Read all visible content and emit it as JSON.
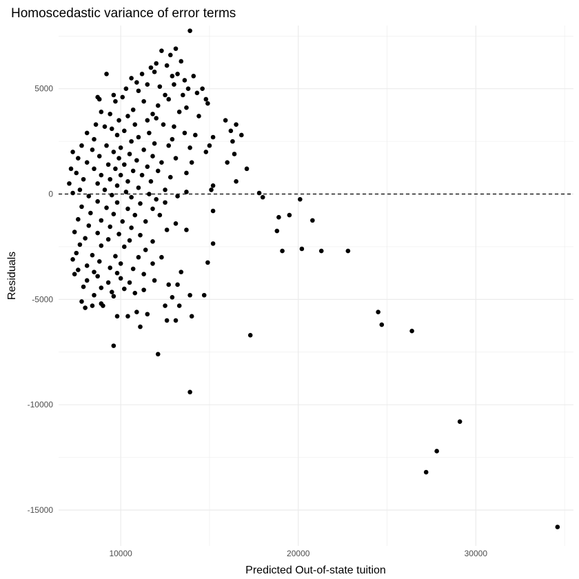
{
  "chart_data": {
    "type": "scatter",
    "title": "Homoscedastic variance of error terms",
    "xlabel": "Predicted Out-of-state tuition",
    "ylabel": "Residuals",
    "xlim": [
      6500,
      35500
    ],
    "ylim": [
      -16700,
      8000
    ],
    "x_ticks": [
      10000,
      20000,
      30000
    ],
    "x_tick_labels": [
      "10000",
      "20000",
      "30000"
    ],
    "x_minor_ticks": [
      15000,
      25000,
      35000
    ],
    "y_ticks": [
      5000,
      0,
      -5000,
      -10000,
      -15000
    ],
    "y_tick_labels": [
      "5000",
      "0",
      "-5000",
      "-10000",
      "-15000"
    ],
    "y_minor_ticks": [
      7500,
      2500,
      -2500,
      -7500,
      -12500
    ],
    "grid": true,
    "reference_line": {
      "y": 0,
      "style": "dashed"
    },
    "point_color": "#000000",
    "background": "#ffffff",
    "grid_color": "#ebebeb",
    "points": [
      [
        13900,
        7750
      ],
      [
        13100,
        6900
      ],
      [
        12300,
        6800
      ],
      [
        12800,
        6600
      ],
      [
        12000,
        6200
      ],
      [
        13400,
        6300
      ],
      [
        11700,
        6000
      ],
      [
        12600,
        6100
      ],
      [
        13200,
        5700
      ],
      [
        13600,
        5400
      ],
      [
        11200,
        5700
      ],
      [
        10600,
        5500
      ],
      [
        9200,
        5700
      ],
      [
        11900,
        5800
      ],
      [
        12900,
        5600
      ],
      [
        14100,
        5600
      ],
      [
        10900,
        5300
      ],
      [
        11500,
        5200
      ],
      [
        12200,
        5100
      ],
      [
        13000,
        5200
      ],
      [
        13800,
        5000
      ],
      [
        14600,
        5000
      ],
      [
        14300,
        4800
      ],
      [
        10300,
        5000
      ],
      [
        11000,
        4900
      ],
      [
        12500,
        4700
      ],
      [
        13500,
        4700
      ],
      [
        9600,
        4700
      ],
      [
        8700,
        4600
      ],
      [
        8800,
        4500
      ],
      [
        10100,
        4600
      ],
      [
        11300,
        4400
      ],
      [
        12700,
        4500
      ],
      [
        14800,
        4500
      ],
      [
        14900,
        4300
      ],
      [
        13700,
        4100
      ],
      [
        12100,
        4200
      ],
      [
        9700,
        4400
      ],
      [
        10700,
        4000
      ],
      [
        11800,
        3800
      ],
      [
        13300,
        3900
      ],
      [
        9400,
        3800
      ],
      [
        8900,
        3900
      ],
      [
        10400,
        3700
      ],
      [
        12000,
        3600
      ],
      [
        14400,
        3700
      ],
      [
        11500,
        3500
      ],
      [
        9900,
        3500
      ],
      [
        8600,
        3300
      ],
      [
        10800,
        3300
      ],
      [
        12400,
        3300
      ],
      [
        13000,
        3200
      ],
      [
        9100,
        3200
      ],
      [
        15900,
        3500
      ],
      [
        16500,
        3300
      ],
      [
        9500,
        3100
      ],
      [
        10200,
        3000
      ],
      [
        11600,
        2900
      ],
      [
        13600,
        2900
      ],
      [
        14200,
        2800
      ],
      [
        15200,
        2700
      ],
      [
        16200,
        3000
      ],
      [
        16800,
        2800
      ],
      [
        8100,
        2900
      ],
      [
        9800,
        2800
      ],
      [
        11000,
        2700
      ],
      [
        12900,
        2600
      ],
      [
        8500,
        2600
      ],
      [
        10600,
        2500
      ],
      [
        11900,
        2400
      ],
      [
        13900,
        2200
      ],
      [
        15000,
        2300
      ],
      [
        16300,
        2500
      ],
      [
        7800,
        2300
      ],
      [
        9200,
        2300
      ],
      [
        10000,
        2200
      ],
      [
        11300,
        2100
      ],
      [
        12700,
        2300
      ],
      [
        14800,
        2000
      ],
      [
        7300,
        2000
      ],
      [
        8400,
        2100
      ],
      [
        9600,
        2000
      ],
      [
        10500,
        1900
      ],
      [
        11800,
        1800
      ],
      [
        13100,
        1700
      ],
      [
        16400,
        1900
      ],
      [
        7600,
        1700
      ],
      [
        8800,
        1800
      ],
      [
        9900,
        1700
      ],
      [
        10900,
        1600
      ],
      [
        12300,
        1500
      ],
      [
        14000,
        1500
      ],
      [
        16000,
        1500
      ],
      [
        8100,
        1500
      ],
      [
        9300,
        1400
      ],
      [
        10200,
        1400
      ],
      [
        11500,
        1300
      ],
      [
        7200,
        1200
      ],
      [
        8500,
        1200
      ],
      [
        9700,
        1200
      ],
      [
        10700,
        1100
      ],
      [
        12100,
        1100
      ],
      [
        13700,
        1000
      ],
      [
        17100,
        1200
      ],
      [
        7500,
        1000
      ],
      [
        8900,
        900
      ],
      [
        10000,
        900
      ],
      [
        11200,
        900
      ],
      [
        12800,
        800
      ],
      [
        16500,
        600
      ],
      [
        7900,
        700
      ],
      [
        9400,
        700
      ],
      [
        10400,
        600
      ],
      [
        11700,
        600
      ],
      [
        15200,
        400
      ],
      [
        7100,
        500
      ],
      [
        8700,
        500
      ],
      [
        9800,
        400
      ],
      [
        11000,
        300
      ],
      [
        12500,
        200
      ],
      [
        15100,
        200
      ],
      [
        7700,
        200
      ],
      [
        9100,
        200
      ],
      [
        10300,
        100
      ],
      [
        11600,
        0
      ],
      [
        13700,
        100
      ],
      [
        17800,
        50
      ],
      [
        7300,
        50
      ],
      [
        8200,
        -100
      ],
      [
        9500,
        -50
      ],
      [
        10600,
        -150
      ],
      [
        12000,
        -250
      ],
      [
        13200,
        -100
      ],
      [
        18000,
        -150
      ],
      [
        20100,
        -250
      ],
      [
        8700,
        -350
      ],
      [
        9800,
        -400
      ],
      [
        11100,
        -450
      ],
      [
        12500,
        -400
      ],
      [
        7800,
        -600
      ],
      [
        9200,
        -650
      ],
      [
        10400,
        -700
      ],
      [
        11800,
        -700
      ],
      [
        15200,
        -800
      ],
      [
        19500,
        -1000
      ],
      [
        18900,
        -1100
      ],
      [
        8300,
        -900
      ],
      [
        9600,
        -950
      ],
      [
        10800,
        -1000
      ],
      [
        12200,
        -1000
      ],
      [
        20800,
        -1250
      ],
      [
        7600,
        -1200
      ],
      [
        8900,
        -1250
      ],
      [
        10100,
        -1300
      ],
      [
        11400,
        -1300
      ],
      [
        13100,
        -1400
      ],
      [
        8200,
        -1500
      ],
      [
        9400,
        -1550
      ],
      [
        10600,
        -1600
      ],
      [
        12600,
        -1700
      ],
      [
        13700,
        -1700
      ],
      [
        18800,
        -1750
      ],
      [
        7400,
        -1800
      ],
      [
        8700,
        -1850
      ],
      [
        9900,
        -1900
      ],
      [
        11100,
        -1950
      ],
      [
        8000,
        -2100
      ],
      [
        9300,
        -2150
      ],
      [
        10500,
        -2200
      ],
      [
        11800,
        -2250
      ],
      [
        15200,
        -2350
      ],
      [
        7700,
        -2400
      ],
      [
        8900,
        -2450
      ],
      [
        10200,
        -2500
      ],
      [
        19100,
        -2700
      ],
      [
        20200,
        -2600
      ],
      [
        21300,
        -2700
      ],
      [
        22800,
        -2700
      ],
      [
        11400,
        -2650
      ],
      [
        7500,
        -2800
      ],
      [
        8400,
        -2900
      ],
      [
        9700,
        -2950
      ],
      [
        11000,
        -3000
      ],
      [
        12300,
        -3000
      ],
      [
        7300,
        -3100
      ],
      [
        8800,
        -3200
      ],
      [
        10000,
        -3300
      ],
      [
        11800,
        -3300
      ],
      [
        14900,
        -3250
      ],
      [
        8100,
        -3400
      ],
      [
        9400,
        -3500
      ],
      [
        10700,
        -3550
      ],
      [
        7600,
        -3600
      ],
      [
        8500,
        -3700
      ],
      [
        9800,
        -3750
      ],
      [
        11300,
        -3800
      ],
      [
        13400,
        -3700
      ],
      [
        7400,
        -3800
      ],
      [
        8700,
        -3900
      ],
      [
        10000,
        -4000
      ],
      [
        11900,
        -4100
      ],
      [
        8100,
        -4100
      ],
      [
        9300,
        -4200
      ],
      [
        10500,
        -4200
      ],
      [
        12700,
        -4300
      ],
      [
        13200,
        -4300
      ],
      [
        7900,
        -4400
      ],
      [
        8900,
        -4450
      ],
      [
        10200,
        -4500
      ],
      [
        11300,
        -4550
      ],
      [
        9500,
        -4650
      ],
      [
        10800,
        -4700
      ],
      [
        13900,
        -4800
      ],
      [
        14700,
        -4800
      ],
      [
        8500,
        -4800
      ],
      [
        9600,
        -4850
      ],
      [
        12900,
        -4900
      ],
      [
        7800,
        -5100
      ],
      [
        8900,
        -5200
      ],
      [
        13300,
        -5300
      ],
      [
        8000,
        -5400
      ],
      [
        8400,
        -5300
      ],
      [
        9000,
        -5300
      ],
      [
        12500,
        -5300
      ],
      [
        9800,
        -5800
      ],
      [
        10400,
        -5800
      ],
      [
        11500,
        -5700
      ],
      [
        12600,
        -6000
      ],
      [
        13100,
        -6000
      ],
      [
        14000,
        -5800
      ],
      [
        10900,
        -5600
      ],
      [
        11100,
        -6300
      ],
      [
        17300,
        -6700
      ],
      [
        24500,
        -5600
      ],
      [
        24700,
        -6200
      ],
      [
        26400,
        -6500
      ],
      [
        9600,
        -7200
      ],
      [
        12100,
        -7600
      ],
      [
        13900,
        -9400
      ],
      [
        29100,
        -10800
      ],
      [
        27800,
        -12200
      ],
      [
        27200,
        -13200
      ],
      [
        34600,
        -15800
      ]
    ]
  }
}
